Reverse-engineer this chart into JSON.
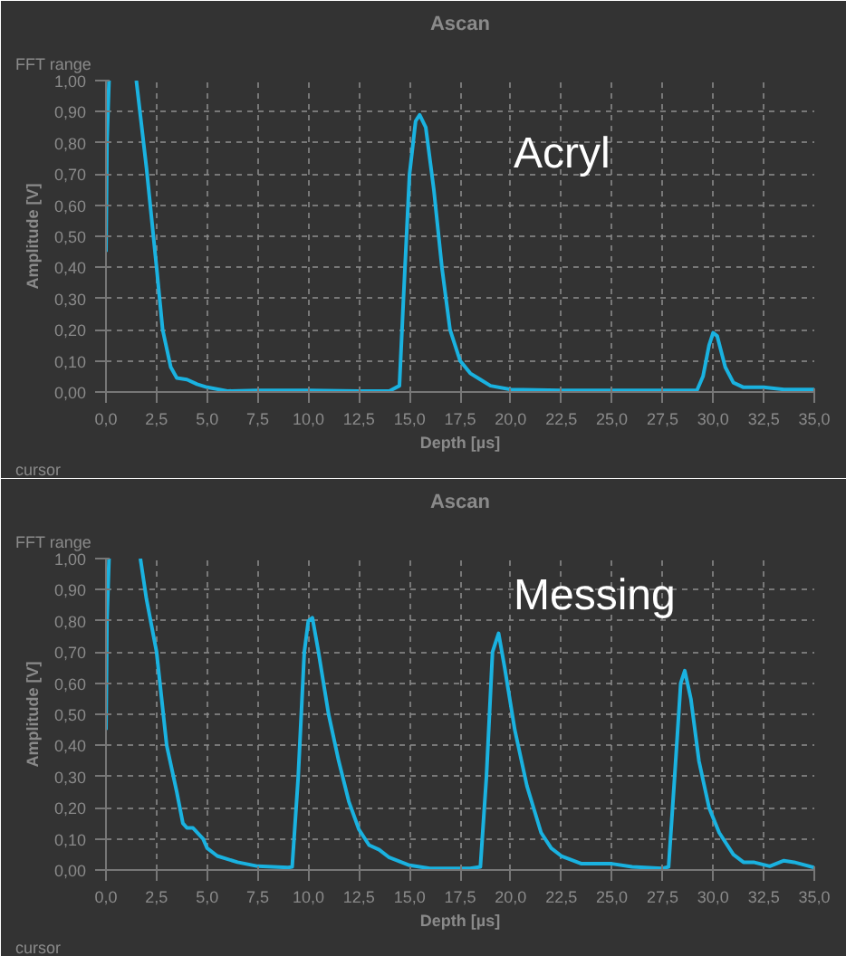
{
  "chart_data": [
    {
      "type": "line",
      "title": "Ascan",
      "xlabel": "Depth [µs]",
      "ylabel": "Amplitude [V]",
      "annotations": [
        "FFT range",
        "cursor",
        "Acryl"
      ],
      "grid": true,
      "line_style": "solid",
      "marker": "none",
      "xlim": [
        0,
        35
      ],
      "ylim": [
        0,
        1
      ],
      "xticks": [
        {
          "value": 0,
          "label": "0,0"
        },
        {
          "value": 2.5,
          "label": "2,5"
        },
        {
          "value": 5,
          "label": "5,0"
        },
        {
          "value": 7.5,
          "label": "7,5"
        },
        {
          "value": 10,
          "label": "10,0"
        },
        {
          "value": 12.5,
          "label": "12,5"
        },
        {
          "value": 15,
          "label": "15,0"
        },
        {
          "value": 17.5,
          "label": "17,5"
        },
        {
          "value": 20,
          "label": "20,0"
        },
        {
          "value": 22.5,
          "label": "22,5"
        },
        {
          "value": 25,
          "label": "25,0"
        },
        {
          "value": 27.5,
          "label": "27,5"
        },
        {
          "value": 30,
          "label": "30,0"
        },
        {
          "value": 32.5,
          "label": "32,5"
        },
        {
          "value": 35,
          "label": "35,0"
        }
      ],
      "yticks": [
        {
          "value": 0,
          "label": "0,00"
        },
        {
          "value": 0.1,
          "label": "0,10"
        },
        {
          "value": 0.2,
          "label": "0,20"
        },
        {
          "value": 0.3,
          "label": "0,30"
        },
        {
          "value": 0.4,
          "label": "0,40"
        },
        {
          "value": 0.5,
          "label": "0,50"
        },
        {
          "value": 0.6,
          "label": "0,60"
        },
        {
          "value": 0.7,
          "label": "0,70"
        },
        {
          "value": 0.8,
          "label": "0,80"
        },
        {
          "value": 0.9,
          "label": "0,90"
        },
        {
          "value": 1,
          "label": "1,00"
        }
      ],
      "series": [
        {
          "color": "#1ab2e0",
          "x": [
            0,
            0.05,
            0.15,
            0.5,
            1.5,
            2.0,
            2.5,
            2.8,
            3.2,
            3.5,
            4.0,
            4.5,
            5.0,
            6.0,
            7.5,
            10,
            12.5,
            14.0,
            14.5,
            14.7,
            15.0,
            15.3,
            15.5,
            15.8,
            16.2,
            16.6,
            17.0,
            17.5,
            18.0,
            18.5,
            19.0,
            20.0,
            22.5,
            25,
            27.5,
            29.2,
            29.5,
            29.8,
            30.0,
            30.2,
            30.6,
            31.0,
            31.5,
            32.5,
            33.5,
            35
          ],
          "values": [
            0.45,
            0.8,
            1.0,
            null,
            1.0,
            0.72,
            0.4,
            0.2,
            0.08,
            0.045,
            0.04,
            0.025,
            0.015,
            0.003,
            0.005,
            0.005,
            0.003,
            0.003,
            0.02,
            0.3,
            0.7,
            0.87,
            0.89,
            0.85,
            0.65,
            0.4,
            0.2,
            0.1,
            0.06,
            0.04,
            0.02,
            0.008,
            0.005,
            0.005,
            0.005,
            0.005,
            0.05,
            0.15,
            0.19,
            0.18,
            0.08,
            0.03,
            0.015,
            0.015,
            0.008,
            0.008
          ]
        }
      ]
    },
    {
      "type": "line",
      "title": "Ascan",
      "xlabel": "Depth [µs]",
      "ylabel": "Amplitude [V]",
      "annotations": [
        "FFT range",
        "cursor",
        "Messing"
      ],
      "grid": true,
      "line_style": "solid",
      "marker": "none",
      "xlim": [
        0,
        35
      ],
      "ylim": [
        0,
        1
      ],
      "xticks": [
        {
          "value": 0,
          "label": "0,0"
        },
        {
          "value": 2.5,
          "label": "2,5"
        },
        {
          "value": 5,
          "label": "5,0"
        },
        {
          "value": 7.5,
          "label": "7,5"
        },
        {
          "value": 10,
          "label": "10,0"
        },
        {
          "value": 12.5,
          "label": "12,5"
        },
        {
          "value": 15,
          "label": "15,0"
        },
        {
          "value": 17.5,
          "label": "17,5"
        },
        {
          "value": 20,
          "label": "20,0"
        },
        {
          "value": 22.5,
          "label": "22,5"
        },
        {
          "value": 25,
          "label": "25,0"
        },
        {
          "value": 27.5,
          "label": "27,5"
        },
        {
          "value": 30,
          "label": "30,0"
        },
        {
          "value": 32.5,
          "label": "32,5"
        },
        {
          "value": 35,
          "label": "35,0"
        }
      ],
      "yticks": [
        {
          "value": 0,
          "label": "0,00"
        },
        {
          "value": 0.1,
          "label": "0,10"
        },
        {
          "value": 0.2,
          "label": "0,20"
        },
        {
          "value": 0.3,
          "label": "0,30"
        },
        {
          "value": 0.4,
          "label": "0,40"
        },
        {
          "value": 0.5,
          "label": "0,50"
        },
        {
          "value": 0.6,
          "label": "0,60"
        },
        {
          "value": 0.7,
          "label": "0,70"
        },
        {
          "value": 0.8,
          "label": "0,80"
        },
        {
          "value": 0.9,
          "label": "0,90"
        },
        {
          "value": 1,
          "label": "1,00"
        }
      ],
      "series": [
        {
          "color": "#1ab2e0",
          "x": [
            0,
            0.05,
            0.15,
            0.5,
            1.7,
            2.0,
            2.5,
            3.0,
            3.5,
            3.8,
            4.0,
            4.3,
            4.8,
            5.0,
            5.5,
            6.5,
            7.5,
            9.0,
            9.2,
            9.5,
            9.8,
            10.0,
            10.2,
            10.5,
            11.0,
            11.5,
            12.0,
            12.5,
            13.0,
            13.5,
            14.0,
            15.0,
            16.0,
            18.0,
            18.5,
            18.8,
            19.1,
            19.4,
            19.7,
            20.2,
            20.8,
            21.5,
            22.0,
            22.5,
            23.5,
            25.0,
            26.0,
            27.5,
            27.8,
            28.1,
            28.4,
            28.6,
            28.9,
            29.3,
            29.8,
            30.3,
            31.0,
            31.5,
            32.0,
            32.8,
            33.5,
            34.0,
            35.0
          ],
          "values": [
            0.45,
            0.8,
            1.0,
            null,
            1.0,
            0.87,
            0.7,
            0.4,
            0.25,
            0.15,
            0.135,
            0.135,
            0.1,
            0.07,
            0.045,
            0.025,
            0.012,
            0.008,
            0.01,
            0.3,
            0.7,
            0.8,
            0.81,
            0.7,
            0.5,
            0.35,
            0.22,
            0.13,
            0.08,
            0.065,
            0.04,
            0.015,
            0.005,
            0.005,
            0.01,
            0.3,
            0.7,
            0.76,
            0.65,
            0.45,
            0.27,
            0.12,
            0.07,
            0.045,
            0.02,
            0.02,
            0.01,
            0.005,
            0.01,
            0.3,
            0.6,
            0.64,
            0.55,
            0.35,
            0.2,
            0.12,
            0.05,
            0.025,
            0.025,
            0.012,
            0.03,
            0.025,
            0.008
          ]
        }
      ]
    }
  ]
}
